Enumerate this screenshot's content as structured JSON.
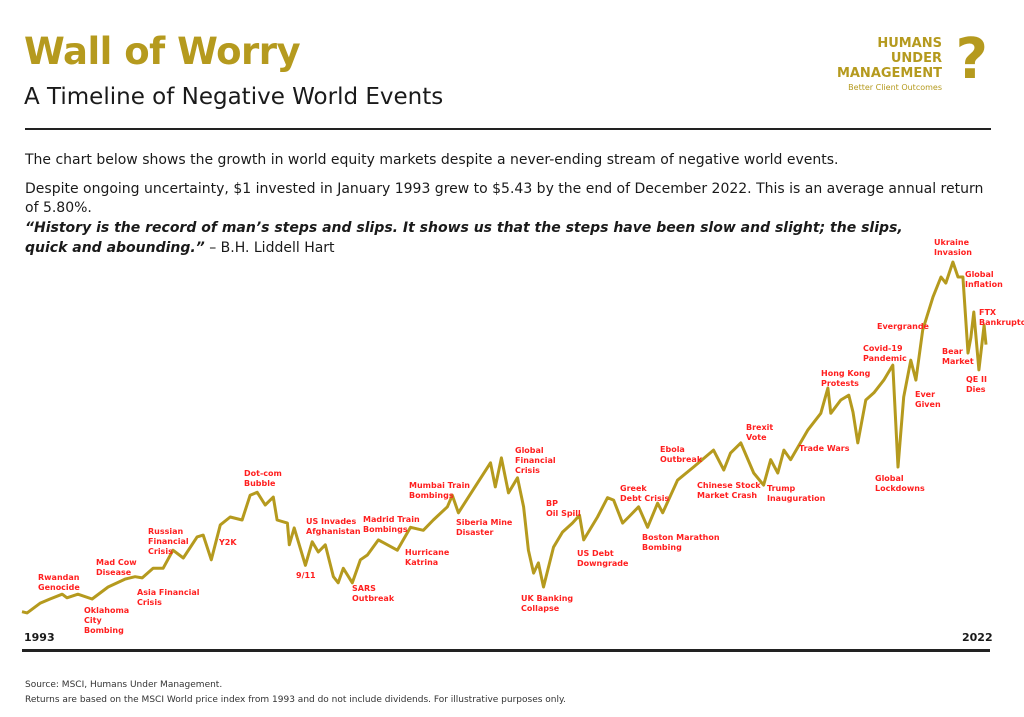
{
  "header": {
    "title": "Wall of Worry",
    "subtitle": "A Timeline of Negative World Events",
    "logo": {
      "line1": "HUMANS",
      "line2": "UNDER",
      "line3": "MANAGEMENT",
      "tagline": "Better Client Outcomes",
      "mark": "?"
    }
  },
  "intro": {
    "p1": "The chart below shows the growth in world equity markets despite a never-ending stream of negative world events.",
    "p2": "Despite ongoing uncertainty, $1 invested in January 1993 grew to $5.43 by the end of December 2022. This is an average annual return of 5.80%.",
    "quote_line1": "“History is the record of man’s steps and slips. It shows us that the steps have been slow and slight; the slips,",
    "quote_line2": "quick and abounding.”",
    "quote_author": " – B.H. Liddell Hart"
  },
  "colors": {
    "line": "#B59A1E",
    "annotation": "#FF1F1F",
    "title": "#B59A1E"
  },
  "chart_data": {
    "type": "line",
    "title": "",
    "xlabel": "",
    "ylabel": "",
    "x_tick_labels": [
      "1993",
      "2022"
    ],
    "xlim": [
      1993,
      2023
    ],
    "ylim": [
      0,
      7.5
    ],
    "grid": false,
    "series": [
      {
        "x": [
          1993.0,
          1993.16,
          1993.56,
          1993.87,
          1994.25,
          1994.4,
          1994.74,
          1995.18,
          1995.68,
          1996.21,
          1996.52,
          1996.74,
          1997.08,
          1997.39,
          1997.7,
          1998.02,
          1998.45,
          1998.64,
          1998.89,
          1999.17,
          1999.48,
          1999.85,
          2000.1,
          2000.32,
          2000.57,
          2000.82,
          2000.94,
          2001.26,
          2001.32,
          2001.47,
          2001.82,
          2002.03,
          2002.22,
          2002.44,
          2002.69,
          2002.84,
          2003.0,
          2003.28,
          2003.53,
          2003.75,
          2004.09,
          2004.68,
          2005.09,
          2005.49,
          2005.8,
          2006.24,
          2006.39,
          2006.58,
          2007.17,
          2007.58,
          2007.73,
          2007.92,
          2008.14,
          2008.42,
          2008.61,
          2008.76,
          2008.92,
          2009.07,
          2009.23,
          2009.54,
          2009.82,
          2010.13,
          2010.35,
          2010.48,
          2010.91,
          2011.22,
          2011.41,
          2011.69,
          2011.88,
          2012.19,
          2012.47,
          2012.78,
          2012.94,
          2013.4,
          2013.9,
          2014.52,
          2014.84,
          2015.05,
          2015.37,
          2015.77,
          2016.08,
          2016.3,
          2016.52,
          2016.71,
          2016.92,
          2017.45,
          2017.86,
          2018.08,
          2018.17,
          2018.48,
          2018.73,
          2018.86,
          2019.01,
          2019.26,
          2019.51,
          2019.82,
          2020.1,
          2020.26,
          2020.44,
          2020.66,
          2020.82,
          2021.03,
          2021.35,
          2021.6,
          2021.75,
          2021.97,
          2022.13,
          2022.28,
          2022.44,
          2022.53,
          2022.62,
          2022.78,
          2022.94,
          2023.0
        ],
        "y": [
          1.0,
          0.98,
          1.14,
          1.21,
          1.29,
          1.23,
          1.29,
          1.21,
          1.41,
          1.54,
          1.58,
          1.56,
          1.72,
          1.72,
          2.02,
          1.89,
          2.24,
          2.27,
          1.86,
          2.44,
          2.57,
          2.52,
          2.93,
          2.98,
          2.77,
          2.9,
          2.52,
          2.47,
          2.11,
          2.39,
          1.77,
          2.16,
          1.99,
          2.11,
          1.58,
          1.48,
          1.72,
          1.48,
          1.86,
          1.94,
          2.19,
          2.02,
          2.4,
          2.35,
          2.52,
          2.74,
          2.93,
          2.64,
          3.13,
          3.47,
          3.07,
          3.55,
          2.97,
          3.22,
          2.74,
          2.02,
          1.64,
          1.81,
          1.41,
          2.07,
          2.32,
          2.47,
          2.6,
          2.19,
          2.57,
          2.89,
          2.85,
          2.47,
          2.57,
          2.74,
          2.4,
          2.8,
          2.64,
          3.18,
          3.4,
          3.68,
          3.35,
          3.63,
          3.8,
          3.3,
          3.1,
          3.52,
          3.3,
          3.68,
          3.52,
          4.01,
          4.29,
          4.71,
          4.29,
          4.51,
          4.59,
          4.31,
          3.8,
          4.51,
          4.63,
          4.84,
          5.09,
          3.4,
          4.56,
          5.17,
          4.84,
          5.67,
          6.22,
          6.55,
          6.45,
          6.8,
          6.55,
          6.55,
          5.29,
          5.55,
          5.97,
          5.01,
          5.75,
          5.43
        ]
      }
    ],
    "annotations": [
      "Rwandan\nGenocide",
      "Oklahoma\nCity\nBombing",
      "Mad Cow\nDisease",
      "Asia Financial\nCrisis",
      "Russian\nFinancial\nCrisis",
      "Y2K",
      "Dot-com\nBubble",
      "US Invades\nAfghanistan",
      "9/11",
      "SARS\nOutbreak",
      "Madrid Train\nBombings",
      "Hurricane\nKatrina",
      "Mumbai Train\nBombings",
      "Siberia Mine\nDisaster",
      "Global\nFinancial\nCrisis",
      "BP\nOil Spill",
      "UK Banking\nCollapse",
      "US Debt\nDowngrade",
      "Greek\nDebt Crisis",
      "Boston Marathon\nBombing",
      "Ebola\nOutbreak",
      "Chinese Stock\nMarket Crash",
      "Brexit\nVote",
      "Trump\nInauguration",
      "Trade Wars",
      "Hong Kong\nProtests",
      "Global\nLockdowns",
      "Covid-19\nPandemic",
      "Evergrande",
      "Ever\nGiven",
      "Bear\nMarket",
      "QE II\nDies",
      "Ukraine\nInvasion",
      "Global\nInflation",
      "FTX\nBankruptcy"
    ]
  },
  "footer": {
    "source": "Source: MSCI, Humans Under Management.",
    "note": "Returns are based on the MSCI World price index from 1993 and do not include dividends. For illustrative purposes only."
  }
}
